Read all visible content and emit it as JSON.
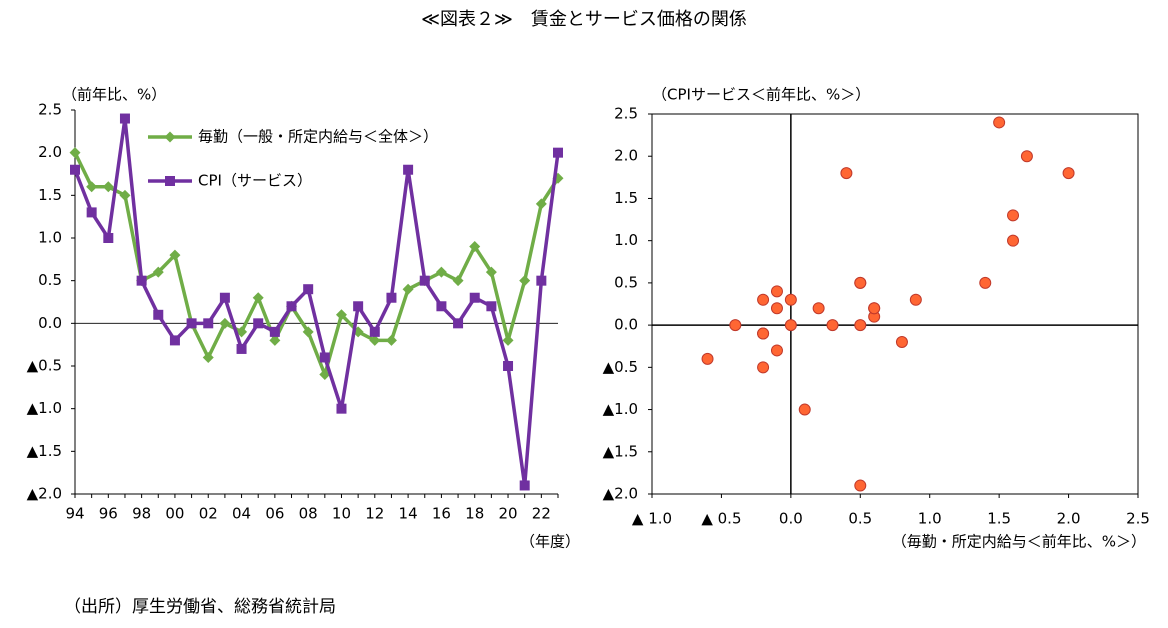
{
  "title": "≪図表２≫　賃金とサービス価格の関係",
  "source": "（出所）厚生労働省、総務省統計局",
  "chart_data": [
    {
      "type": "line",
      "y_label": "（前年比、%）",
      "x_label": "（年度）",
      "categories": [
        "94",
        null,
        "96",
        null,
        "98",
        null,
        "00",
        null,
        "02",
        null,
        "04",
        null,
        "06",
        null,
        "08",
        null,
        "10",
        null,
        "12",
        null,
        "14",
        null,
        "16",
        null,
        "18",
        null,
        "20",
        null,
        "22",
        null
      ],
      "series": [
        {
          "name": "毎勤（一般・所定内給与＜全体＞）",
          "color": "#70ad47",
          "marker": "diamond",
          "values": [
            2.0,
            1.6,
            1.6,
            1.5,
            0.5,
            0.6,
            0.8,
            0.0,
            -0.4,
            0.0,
            -0.1,
            0.3,
            -0.2,
            0.2,
            -0.1,
            -0.6,
            0.1,
            -0.1,
            -0.2,
            -0.2,
            0.4,
            0.5,
            0.6,
            0.5,
            0.9,
            0.6,
            -0.2,
            0.5,
            1.4,
            1.7
          ]
        },
        {
          "name": "CPI（サービス）",
          "color": "#7030a0",
          "marker": "square",
          "values": [
            1.8,
            1.3,
            1.0,
            2.4,
            0.5,
            0.1,
            -0.2,
            0.0,
            0.0,
            0.3,
            -0.3,
            0.0,
            -0.1,
            0.2,
            0.4,
            -0.4,
            -1.0,
            0.2,
            -0.1,
            0.3,
            1.8,
            0.5,
            0.2,
            0.0,
            0.3,
            0.2,
            -0.5,
            -1.9,
            0.5,
            2.0
          ]
        }
      ],
      "ylim": [
        -2,
        2.5
      ],
      "yticks": [
        2.5,
        {
          "value": 2,
          "label": "2.0"
        },
        1.5,
        {
          "value": 1,
          "label": "1.0"
        },
        0.5,
        {
          "value": 0,
          "label": "0.0"
        },
        {
          "value": -0.5,
          "label": "▲0.5"
        },
        {
          "value": -1,
          "label": "▲1.0"
        },
        {
          "value": -1.5,
          "label": "▲1.5"
        },
        {
          "value": -2,
          "label": "▲2.0"
        }
      ],
      "legend": "upper left"
    },
    {
      "type": "scatter",
      "y_label": "（CPIサービス＜前年比、%＞）",
      "x_label": "（毎勤・所定内給与＜前年比、%＞）",
      "color": "#ff6633",
      "x": [
        2.0,
        1.6,
        1.6,
        1.5,
        0.5,
        0.6,
        0.8,
        0.0,
        -0.4,
        0.0,
        -0.1,
        0.3,
        -0.2,
        0.2,
        -0.1,
        -0.6,
        0.1,
        -0.1,
        -0.2,
        -0.2,
        0.4,
        0.5,
        0.6,
        0.5,
        0.9,
        0.6,
        -0.2,
        0.5,
        1.4,
        1.7
      ],
      "y": [
        1.8,
        1.3,
        1.0,
        2.4,
        0.5,
        0.1,
        -0.2,
        0.0,
        0.0,
        0.3,
        -0.3,
        0.0,
        -0.1,
        0.2,
        0.4,
        -0.4,
        -1.0,
        0.2,
        -0.1,
        0.3,
        1.8,
        0.5,
        0.2,
        0.0,
        0.3,
        0.2,
        -0.5,
        -1.9,
        0.5,
        2.0
      ],
      "xlim": [
        -1,
        2.5
      ],
      "xticks": [
        {
          "value": -1,
          "label": "▲ 1.0"
        },
        {
          "value": -0.5,
          "label": "▲ 0.5"
        },
        {
          "value": 0,
          "label": "0.0"
        },
        0.5,
        {
          "value": 1,
          "label": "1.0"
        },
        1.5,
        {
          "value": 2,
          "label": "2.0"
        },
        2.5
      ],
      "ylim": [
        -2,
        2.5
      ],
      "yticks": [
        2.5,
        {
          "value": 2,
          "label": "2.0"
        },
        1.5,
        {
          "value": 1,
          "label": "1.0"
        },
        0.5,
        {
          "value": 0,
          "label": "0.0"
        },
        {
          "value": -0.5,
          "label": "▲0.5"
        },
        {
          "value": -1,
          "label": "▲1.0"
        },
        {
          "value": -1.5,
          "label": "▲1.5"
        },
        {
          "value": -2,
          "label": "▲2.0"
        }
      ]
    }
  ]
}
